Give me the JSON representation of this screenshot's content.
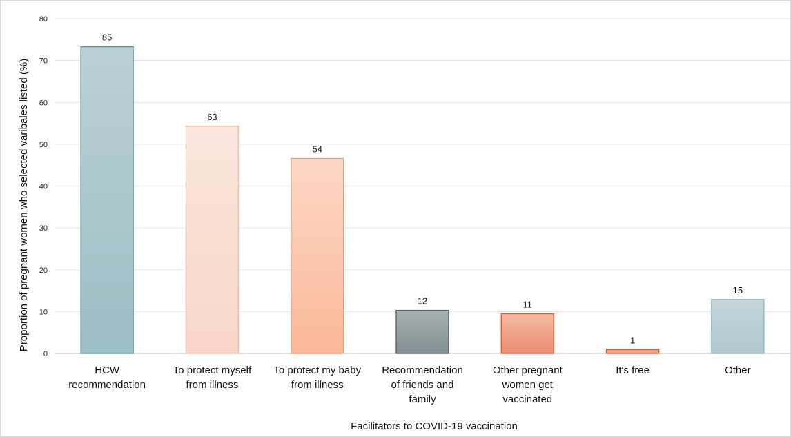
{
  "chart_data": {
    "type": "bar",
    "xlabel": "Facilitators to COVID-19 vaccination",
    "ylabel": "Proportion of pregnant women who selected varibales listed (%)",
    "ylim": [
      0,
      80
    ],
    "yticks": [
      0,
      10,
      20,
      30,
      40,
      50,
      60,
      70,
      80
    ],
    "grid": true,
    "categories": [
      [
        "HCW",
        "recommendation"
      ],
      [
        "To protect myself",
        "from illness"
      ],
      [
        "To protect my baby",
        "from illness"
      ],
      [
        "Recommendation",
        "of friends and",
        "family"
      ],
      [
        "Other pregnant",
        "women get",
        "vaccinated"
      ],
      [
        "It's free"
      ],
      [
        "Other"
      ]
    ],
    "values": [
      73.3,
      54.3,
      46.6,
      10.3,
      9.5,
      0.9,
      12.9
    ],
    "data_labels": [
      "85",
      "63",
      "54",
      "12",
      "11",
      "1",
      "15"
    ],
    "bar_colors": [
      {
        "top": "#b9d0d6",
        "bottom": "#9cbec5",
        "stroke": "#5f8e97"
      },
      {
        "top": "#fbe5dc",
        "bottom": "#f8d6c7",
        "stroke": "#f0b89c"
      },
      {
        "top": "#fcd7c5",
        "bottom": "#fab898",
        "stroke": "#f0935f"
      },
      {
        "top": "#a7b0b2",
        "bottom": "#828e91",
        "stroke": "#4f5e61"
      },
      {
        "top": "#f4b9a4",
        "bottom": "#ec8e70",
        "stroke": "#d9562e"
      },
      {
        "top": "#f6b8a0",
        "bottom": "#ef9676",
        "stroke": "#d9562e"
      },
      {
        "top": "#c4d7db",
        "bottom": "#adc8ce",
        "stroke": "#8fb2ba"
      }
    ]
  }
}
